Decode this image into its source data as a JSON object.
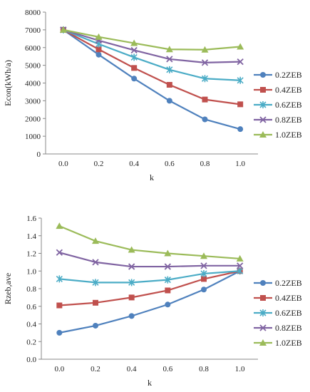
{
  "chart_data": [
    {
      "type": "line",
      "title": "",
      "xlabel": "k",
      "ylabel": "Econ(kWh/a)",
      "x": [
        0.0,
        0.2,
        0.4,
        0.6,
        0.8,
        1.0
      ],
      "x_tick_labels": [
        "0.0",
        "0.2",
        "0.4",
        "0.6",
        "0.8",
        "1.0"
      ],
      "ylim": [
        0,
        8000
      ],
      "y_ticks": [
        0,
        1000,
        2000,
        3000,
        4000,
        5000,
        6000,
        7000,
        8000
      ],
      "y_tick_labels": [
        "0",
        "1000",
        "2000",
        "3000",
        "4000",
        "5000",
        "6000",
        "7000",
        "8000"
      ],
      "grid": false,
      "legend_position": "right",
      "series": [
        {
          "name": "0.2ZEB",
          "color": "#4f81bd",
          "marker": "circle",
          "values": [
            7000,
            5600,
            4250,
            3000,
            1950,
            1400
          ]
        },
        {
          "name": "0.4ZEB",
          "color": "#c0504d",
          "marker": "square",
          "values": [
            7000,
            5900,
            4850,
            3900,
            3070,
            2800
          ]
        },
        {
          "name": "0.6ZEB",
          "color": "#4bacc6",
          "marker": "asterisk",
          "values": [
            7000,
            6200,
            5450,
            4750,
            4250,
            4150
          ]
        },
        {
          "name": "0.8ZEB",
          "color": "#8064a2",
          "marker": "x",
          "values": [
            7000,
            6400,
            5850,
            5350,
            5150,
            5200
          ]
        },
        {
          "name": "1.0ZEB",
          "color": "#9bbb59",
          "marker": "triangle",
          "values": [
            7000,
            6600,
            6250,
            5900,
            5880,
            6050
          ]
        }
      ]
    },
    {
      "type": "line",
      "title": "",
      "xlabel": "k",
      "ylabel": "Rzeb,ave",
      "x": [
        0.0,
        0.2,
        0.4,
        0.6,
        0.8,
        1.0
      ],
      "x_tick_labels": [
        "0.0",
        "0.2",
        "0.4",
        "0.6",
        "0.8",
        "1.0"
      ],
      "ylim": [
        0,
        1.6
      ],
      "y_ticks": [
        0,
        0.2,
        0.4,
        0.6,
        0.8,
        1.0,
        1.2,
        1.4,
        1.6
      ],
      "y_tick_labels": [
        "0.0",
        "0.2",
        "0.4",
        "0.6",
        "0.8",
        "1.0",
        "1.2",
        "1.4",
        "1.6"
      ],
      "grid": false,
      "legend_position": "right",
      "series": [
        {
          "name": "0.2ZEB",
          "color": "#4f81bd",
          "marker": "circle",
          "values": [
            0.3,
            0.38,
            0.49,
            0.62,
            0.79,
            1.0
          ]
        },
        {
          "name": "0.4ZEB",
          "color": "#c0504d",
          "marker": "square",
          "values": [
            0.61,
            0.64,
            0.7,
            0.78,
            0.91,
            1.0
          ]
        },
        {
          "name": "0.6ZEB",
          "color": "#4bacc6",
          "marker": "asterisk",
          "values": [
            0.91,
            0.87,
            0.87,
            0.9,
            0.97,
            1.0
          ]
        },
        {
          "name": "0.8ZEB",
          "color": "#8064a2",
          "marker": "x",
          "values": [
            1.21,
            1.1,
            1.05,
            1.05,
            1.06,
            1.06
          ]
        },
        {
          "name": "1.0ZEB",
          "color": "#9bbb59",
          "marker": "triangle",
          "values": [
            1.51,
            1.34,
            1.24,
            1.2,
            1.17,
            1.14
          ]
        }
      ]
    }
  ]
}
